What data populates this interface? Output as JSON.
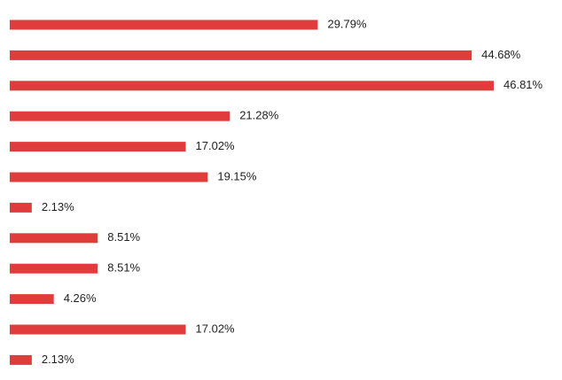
{
  "chart_data": {
    "type": "hbar",
    "categories": [
      null,
      null,
      null,
      null,
      null,
      null,
      null,
      null,
      null,
      null,
      null,
      null
    ],
    "values": [
      29.79,
      44.68,
      46.81,
      21.28,
      17.02,
      19.15,
      2.13,
      8.51,
      8.51,
      4.26,
      17.02,
      2.13
    ],
    "value_labels": [
      "29.79%",
      "44.68%",
      "46.81%",
      "21.28%",
      "17.02%",
      "19.15%",
      "2.13%",
      "8.51%",
      "8.51%",
      "4.26%",
      "17.02%",
      "2.13%"
    ],
    "color": "#e03c3c"
  }
}
